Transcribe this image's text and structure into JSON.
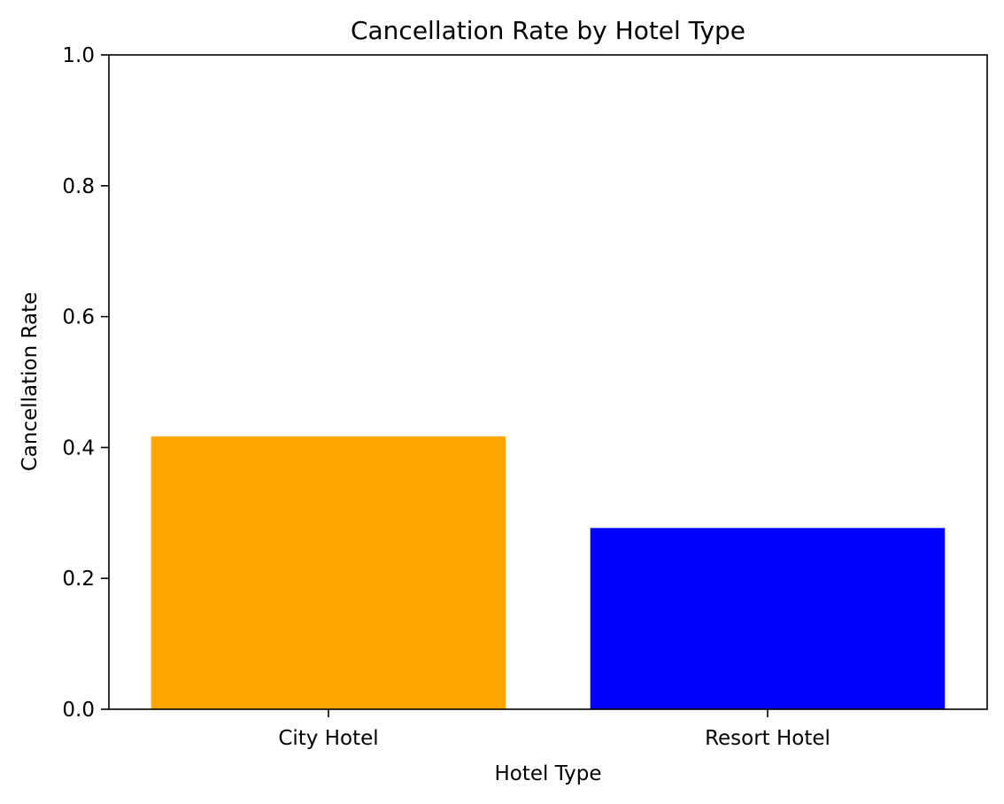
{
  "chart_data": {
    "type": "bar",
    "title": "Cancellation Rate by Hotel Type",
    "xlabel": "Hotel Type",
    "ylabel": "Cancellation Rate",
    "categories": [
      "City Hotel",
      "Resort Hotel"
    ],
    "values": [
      0.417,
      0.277
    ],
    "colors": [
      "#FFA500",
      "#0000FF"
    ],
    "ylim": [
      0,
      1.0
    ],
    "yticks": [
      "0.0",
      "0.2",
      "0.4",
      "0.6",
      "0.8",
      "1.0"
    ],
    "grid": false,
    "legend": "none"
  }
}
